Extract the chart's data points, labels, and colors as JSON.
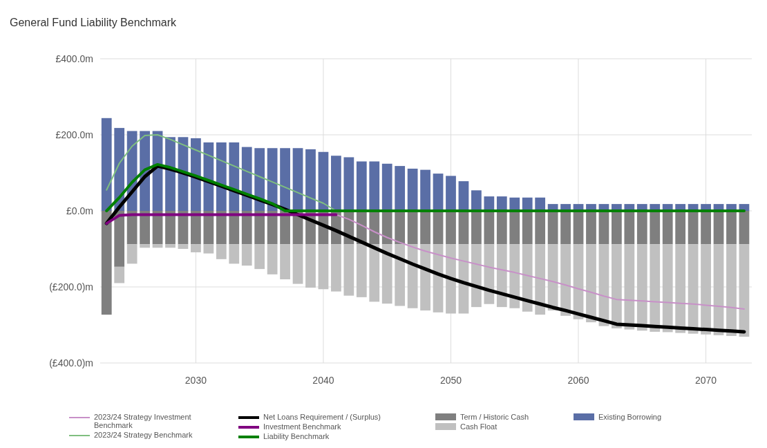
{
  "chart_data": {
    "type": "bar",
    "title": "General Fund Liability Benchmark",
    "stacked": true,
    "grid": true,
    "legend": "bottom",
    "x": [
      2023,
      2024,
      2025,
      2026,
      2027,
      2028,
      2029,
      2030,
      2031,
      2032,
      2033,
      2034,
      2035,
      2036,
      2037,
      2038,
      2039,
      2040,
      2041,
      2042,
      2043,
      2044,
      2045,
      2046,
      2047,
      2048,
      2049,
      2050,
      2051,
      2052,
      2053,
      2054,
      2055,
      2056,
      2057,
      2058,
      2059,
      2060,
      2061,
      2062,
      2063,
      2064,
      2065,
      2066,
      2067,
      2068,
      2069,
      2070,
      2071,
      2072,
      2073
    ],
    "xlim": [
      2022.5,
      2073.6
    ],
    "xticks": [
      2030,
      2040,
      2050,
      2060,
      2070
    ],
    "ylim": [
      -400,
      400
    ],
    "yticks": [
      {
        "value": 400,
        "label": "£400.0m"
      },
      {
        "value": 200,
        "label": "£200.0m"
      },
      {
        "value": 0,
        "label": "£0.0m"
      },
      {
        "value": -200,
        "label": "(£200.0)m"
      },
      {
        "value": -400,
        "label": "(£400.0)m"
      }
    ],
    "series": [
      {
        "name": "2023/24 Strategy Investment Benchmark",
        "type": "line",
        "color": "#c890c8",
        "values": [
          null,
          null,
          null,
          null,
          null,
          null,
          null,
          null,
          null,
          null,
          null,
          null,
          null,
          null,
          null,
          null,
          null,
          null,
          -10,
          -22,
          -38,
          -55,
          -70,
          -83,
          -95,
          -106,
          -115,
          -124,
          -132,
          -140,
          -148,
          -155,
          -162,
          -170,
          -178,
          -186,
          -195,
          -205,
          -214,
          -224,
          -233,
          -235,
          -237,
          -239,
          -241,
          -243,
          -245,
          -248,
          -251,
          -254,
          -258
        ]
      },
      {
        "name": "2023/24 Strategy Benchmark",
        "type": "line",
        "color": "#7fbf7f",
        "values": [
          55,
          125,
          170,
          198,
          200,
          188,
          174,
          160,
          146,
          132,
          118,
          104,
          90,
          76,
          62,
          48,
          34,
          20,
          0,
          null,
          null,
          null,
          null,
          null,
          null,
          null,
          null,
          null,
          null,
          null,
          null,
          null,
          null,
          null,
          null,
          null,
          null,
          null,
          null,
          null,
          null,
          null,
          null,
          null,
          null,
          null,
          null,
          null,
          null,
          null,
          null
        ]
      },
      {
        "name": "Net Loans Requirement / (Surplus)",
        "type": "line",
        "color": "#000000",
        "values": [
          -33,
          10,
          50,
          90,
          118,
          110,
          100,
          89,
          77,
          65,
          53,
          41,
          29,
          17,
          4,
          -10,
          -24,
          -38,
          -52,
          -67,
          -82,
          -97,
          -112,
          -126,
          -140,
          -153,
          -166,
          -178,
          -189,
          -199,
          -209,
          -218,
          -227,
          -236,
          -245,
          -254,
          -262,
          -271,
          -280,
          -289,
          -298,
          -300,
          -302,
          -304,
          -306,
          -308,
          -310,
          -312,
          -314,
          -316,
          -318
        ]
      },
      {
        "name": "Investment Benchmark",
        "type": "line",
        "color": "#800080",
        "values": [
          -33,
          -12,
          -10,
          -10,
          -10,
          -10,
          -10,
          -10,
          -10,
          -10,
          -10,
          -10,
          -10,
          -10,
          -10,
          -10,
          -10,
          -10,
          -10,
          null,
          null,
          null,
          null,
          null,
          null,
          null,
          null,
          null,
          null,
          null,
          null,
          null,
          null,
          null,
          null,
          null,
          null,
          null,
          null,
          null,
          null,
          null,
          null,
          null,
          null,
          null,
          null,
          null,
          null,
          null,
          null
        ]
      },
      {
        "name": "Liability Benchmark",
        "type": "line",
        "color": "#008000",
        "values": [
          0,
          35,
          75,
          108,
          122,
          114,
          103,
          92,
          80,
          68,
          56,
          44,
          32,
          19,
          0,
          0,
          0,
          0,
          0,
          0,
          0,
          0,
          0,
          0,
          0,
          0,
          0,
          0,
          0,
          0,
          0,
          0,
          0,
          0,
          0,
          0,
          0,
          0,
          0,
          0,
          0,
          0,
          0,
          0,
          0,
          0,
          0,
          0,
          0,
          0,
          0
        ]
      },
      {
        "name": "Term / Historic Cash",
        "color": "#7f7f7f",
        "values": [
          -273,
          -147,
          -88,
          -88,
          -88,
          -88,
          -88,
          -88,
          -88,
          -88,
          -88,
          -88,
          -88,
          -88,
          -88,
          -88,
          -88,
          -88,
          -88,
          -88,
          -88,
          -88,
          -88,
          -88,
          -88,
          -88,
          -88,
          -88,
          -88,
          -88,
          -88,
          -88,
          -88,
          -88,
          -88,
          -88,
          -88,
          -88,
          -88,
          -88,
          -88,
          -88,
          -88,
          -88,
          -88,
          -88,
          -88,
          -88,
          -88,
          -88,
          -88
        ]
      },
      {
        "name": "Cash Float",
        "color": "#c0c0c0",
        "values": [
          0,
          -43,
          -51,
          -9,
          -9,
          -9,
          -12,
          -21,
          -24,
          -39,
          -51,
          -56,
          -65,
          -79,
          -92,
          -104,
          -114,
          -118,
          -124,
          -135,
          -139,
          -151,
          -156,
          -162,
          -168,
          -174,
          -179,
          -182,
          -182,
          -165,
          -157,
          -165,
          -168,
          -177,
          -185,
          -174,
          -188,
          -197,
          -205,
          -215,
          -221,
          -224,
          -227,
          -230,
          -231,
          -233,
          -235,
          -237,
          -239,
          -241,
          -243
        ]
      },
      {
        "name": "Existing Borrowing",
        "color": "#5a6ea6",
        "values": [
          244,
          218,
          210,
          210,
          210,
          194,
          194,
          191,
          180,
          180,
          180,
          168,
          165,
          165,
          165,
          165,
          162,
          155,
          145,
          141,
          130,
          130,
          124,
          118,
          111,
          108,
          98,
          92,
          78,
          54,
          38,
          38,
          35,
          35,
          35,
          18,
          18,
          18,
          18,
          18,
          18,
          18,
          18,
          18,
          18,
          18,
          18,
          18,
          18,
          18,
          18
        ]
      }
    ]
  }
}
